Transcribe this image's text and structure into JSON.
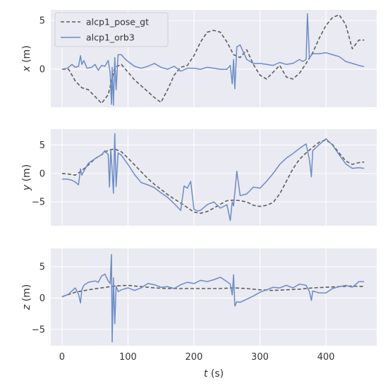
{
  "colors": {
    "panel_bg": "#eaeaf2",
    "grid": "#ffffff",
    "gt": "#5d5d5d",
    "orb": "#6b8cc4"
  },
  "legend": {
    "gt_label": "alcp1_pose_gt",
    "orb_label": "alcp1_orb3",
    "placement": "top-left"
  },
  "xaxis": {
    "label_var": "t",
    "label_unit": " (s)",
    "ticks": [
      "0",
      "100",
      "200",
      "300",
      "400"
    ]
  },
  "chart_data": [
    {
      "type": "line",
      "ylabel_var": "x",
      "ylabel_unit": " (m)",
      "xlim": [
        -17,
        477
      ],
      "ylim": [
        -3.9,
        6.1
      ],
      "yticks": [
        {
          "v": 0,
          "label": "0"
        },
        {
          "v": 5,
          "label": "5"
        }
      ],
      "series": [
        {
          "name": "alcp1_pose_gt",
          "style": "dashed",
          "x": [
            0,
            10,
            20,
            30,
            40,
            50,
            60,
            70,
            80,
            90,
            100,
            110,
            120,
            130,
            140,
            150,
            160,
            170,
            180,
            190,
            200,
            210,
            220,
            230,
            240,
            250,
            260,
            270,
            280,
            290,
            300,
            310,
            320,
            330,
            340,
            350,
            360,
            370,
            380,
            390,
            400,
            410,
            420,
            430,
            440,
            450,
            458
          ],
          "y": [
            0,
            0,
            -1.2,
            -1.9,
            -2.1,
            -2.8,
            -3.5,
            -2.6,
            0.2,
            0.5,
            -0.3,
            -1.1,
            -1.7,
            -2.3,
            -2.9,
            -3.4,
            -2.1,
            -0.6,
            0.2,
            0.4,
            1.4,
            2.8,
            3.8,
            4.0,
            3.8,
            2.8,
            1.5,
            1.2,
            2.0,
            0.5,
            -0.6,
            -1.0,
            -0.3,
            0.4,
            -0.8,
            -1.0,
            -0.4,
            0.6,
            1.7,
            3.2,
            4.5,
            5.3,
            5.6,
            4.6,
            2.1,
            3.0,
            3.0
          ]
        },
        {
          "name": "alcp1_orb3",
          "style": "solid",
          "x": [
            0,
            8,
            15,
            20,
            25,
            28,
            30,
            33,
            38,
            45,
            50,
            55,
            60,
            65,
            70,
            73,
            75,
            76,
            78,
            80,
            82,
            85,
            90,
            95,
            100,
            110,
            120,
            130,
            140,
            150,
            160,
            170,
            180,
            190,
            200,
            210,
            220,
            230,
            240,
            250,
            255,
            258,
            260,
            262,
            265,
            270,
            280,
            290,
            300,
            310,
            320,
            330,
            340,
            350,
            360,
            365,
            370,
            372,
            375,
            380,
            390,
            400,
            410,
            420,
            430,
            440,
            450,
            455,
            458
          ],
          "y": [
            0,
            0.1,
            0.5,
            0.2,
            0.3,
            1.4,
            0.5,
            0.9,
            0.1,
            0.2,
            0.5,
            -0.1,
            0.4,
            0.3,
            0.9,
            -0.4,
            -3.6,
            0.2,
            -3.7,
            1.2,
            -2.1,
            1.5,
            1.5,
            1.1,
            0.8,
            0.3,
            0.1,
            0.3,
            0.6,
            0.2,
            0,
            0.3,
            -0.2,
            0.1,
            0.1,
            0,
            0.2,
            0.1,
            0,
            0,
            0.4,
            -1.5,
            1.0,
            -2.0,
            2.3,
            2.5,
            1.0,
            0.6,
            0.6,
            0.5,
            0.4,
            0.7,
            0.5,
            0.6,
            1.0,
            0.8,
            1.0,
            5.7,
            1.2,
            1.6,
            1.6,
            1.7,
            1.5,
            1.3,
            0.8,
            0.6,
            0.4,
            0.3,
            0.3
          ]
        }
      ]
    },
    {
      "type": "line",
      "ylabel_var": "y",
      "ylabel_unit": " (m)",
      "xlim": [
        -17,
        477
      ],
      "ylim": [
        -9.2,
        7.8
      ],
      "yticks": [
        {
          "v": -5,
          "label": "−5"
        },
        {
          "v": 0,
          "label": "0"
        },
        {
          "v": 5,
          "label": "5"
        }
      ],
      "series": [
        {
          "name": "alcp1_pose_gt",
          "style": "dashed",
          "x": [
            0,
            10,
            20,
            30,
            40,
            50,
            60,
            70,
            80,
            90,
            100,
            110,
            120,
            130,
            140,
            150,
            160,
            170,
            180,
            190,
            200,
            210,
            220,
            230,
            240,
            250,
            260,
            270,
            280,
            290,
            300,
            310,
            320,
            330,
            340,
            350,
            360,
            370,
            380,
            390,
            400,
            410,
            420,
            430,
            440,
            450,
            458
          ],
          "y": [
            0,
            -0.1,
            -0.3,
            0.5,
            1.5,
            2.6,
            3.3,
            4.1,
            4.3,
            3.8,
            2.7,
            1.5,
            0.3,
            -0.9,
            -1.9,
            -2.8,
            -3.7,
            -4.5,
            -5.2,
            -6.0,
            -6.8,
            -7.0,
            -6.7,
            -6.1,
            -5.4,
            -4.8,
            -4.7,
            -4.8,
            -5.0,
            -5.6,
            -5.8,
            -5.6,
            -5.1,
            -3.6,
            -1.4,
            0.8,
            2.5,
            3.6,
            4.6,
            5.5,
            5.9,
            5.1,
            3.6,
            2.2,
            1.6,
            1.9,
            2.0
          ]
        },
        {
          "name": "alcp1_orb3",
          "style": "solid",
          "x": [
            0,
            8,
            15,
            20,
            25,
            28,
            30,
            33,
            40,
            50,
            60,
            65,
            70,
            72,
            74,
            76,
            78,
            80,
            82,
            85,
            90,
            100,
            110,
            120,
            130,
            140,
            150,
            160,
            170,
            180,
            185,
            190,
            195,
            200,
            205,
            210,
            220,
            230,
            240,
            250,
            255,
            258,
            260,
            265,
            270,
            280,
            290,
            300,
            310,
            320,
            330,
            340,
            350,
            360,
            370,
            375,
            378,
            380,
            390,
            400,
            410,
            420,
            430,
            440,
            450,
            458
          ],
          "y": [
            -1.0,
            -1.0,
            -1.2,
            -1.5,
            -2.0,
            0.8,
            -0.3,
            0.4,
            1.8,
            2.6,
            3.3,
            4.0,
            3.3,
            -2.4,
            4.2,
            0.5,
            -3.5,
            7.0,
            -2.3,
            3.6,
            3.2,
            1.6,
            -0.2,
            -1.6,
            -2.0,
            -2.5,
            -3.4,
            -4.2,
            -5.3,
            -6.5,
            -2.2,
            -2.6,
            -1.4,
            -6.3,
            -6.6,
            -6.5,
            -5.5,
            -5.0,
            -6.1,
            -5.5,
            -8.3,
            -5.0,
            -5.7,
            0.4,
            -3.9,
            -3.6,
            -2.4,
            -2.6,
            -1.4,
            0.0,
            1.6,
            2.7,
            3.5,
            4.4,
            5.2,
            2.4,
            -0.6,
            4.0,
            5.1,
            6.1,
            5.0,
            3.3,
            1.7,
            0.9,
            1.0,
            0.9
          ]
        }
      ]
    },
    {
      "type": "line",
      "ylabel_var": "z",
      "ylabel_unit": " (m)",
      "xlim": [
        -17,
        477
      ],
      "ylim": [
        -7.6,
        7.9
      ],
      "yticks": [
        {
          "v": -5,
          "label": "−5"
        },
        {
          "v": 0,
          "label": "0"
        },
        {
          "v": 5,
          "label": "5"
        }
      ],
      "series": [
        {
          "name": "alcp1_pose_gt",
          "style": "dashed",
          "x": [
            0,
            20,
            40,
            60,
            80,
            100,
            120,
            140,
            160,
            180,
            200,
            220,
            240,
            260,
            280,
            300,
            320,
            340,
            360,
            380,
            400,
            420,
            440,
            458
          ],
          "y": [
            0.2,
            0.9,
            1.3,
            1.6,
            1.9,
            2.0,
            1.8,
            1.6,
            1.5,
            1.5,
            1.5,
            1.5,
            1.5,
            1.6,
            1.5,
            1.3,
            1.2,
            1.3,
            1.4,
            1.6,
            1.7,
            1.8,
            1.9,
            1.8
          ]
        },
        {
          "name": "alcp1_orb3",
          "style": "solid",
          "x": [
            0,
            10,
            20,
            25,
            28,
            30,
            33,
            40,
            50,
            55,
            60,
            65,
            70,
            73,
            75,
            76,
            78,
            80,
            82,
            85,
            90,
            100,
            110,
            120,
            130,
            140,
            150,
            160,
            170,
            180,
            190,
            200,
            210,
            220,
            230,
            240,
            250,
            255,
            258,
            260,
            262,
            265,
            270,
            280,
            290,
            300,
            310,
            320,
            330,
            340,
            350,
            360,
            370,
            375,
            378,
            380,
            390,
            400,
            410,
            420,
            430,
            440,
            450,
            458
          ],
          "y": [
            0.2,
            0.6,
            1.6,
            0.6,
            -0.8,
            1.3,
            2.0,
            2.5,
            2.7,
            2.5,
            3.5,
            3.8,
            2.7,
            2.3,
            6.9,
            -7.0,
            3.2,
            -4.1,
            1.9,
            1.0,
            1.3,
            1.6,
            1.2,
            1.6,
            2.3,
            2.1,
            1.7,
            1.8,
            1.5,
            2.1,
            2.5,
            2.3,
            2.8,
            2.6,
            2.9,
            3.3,
            2.6,
            2.2,
            0.5,
            3.7,
            -1.3,
            -0.6,
            -0.7,
            -0.2,
            0.3,
            0.9,
            1.3,
            1.7,
            1.6,
            2.0,
            1.6,
            2.2,
            2.0,
            1.0,
            -0.4,
            1.1,
            0.8,
            0.8,
            1.5,
            1.8,
            2.0,
            1.7,
            2.6,
            2.6
          ]
        }
      ]
    }
  ]
}
